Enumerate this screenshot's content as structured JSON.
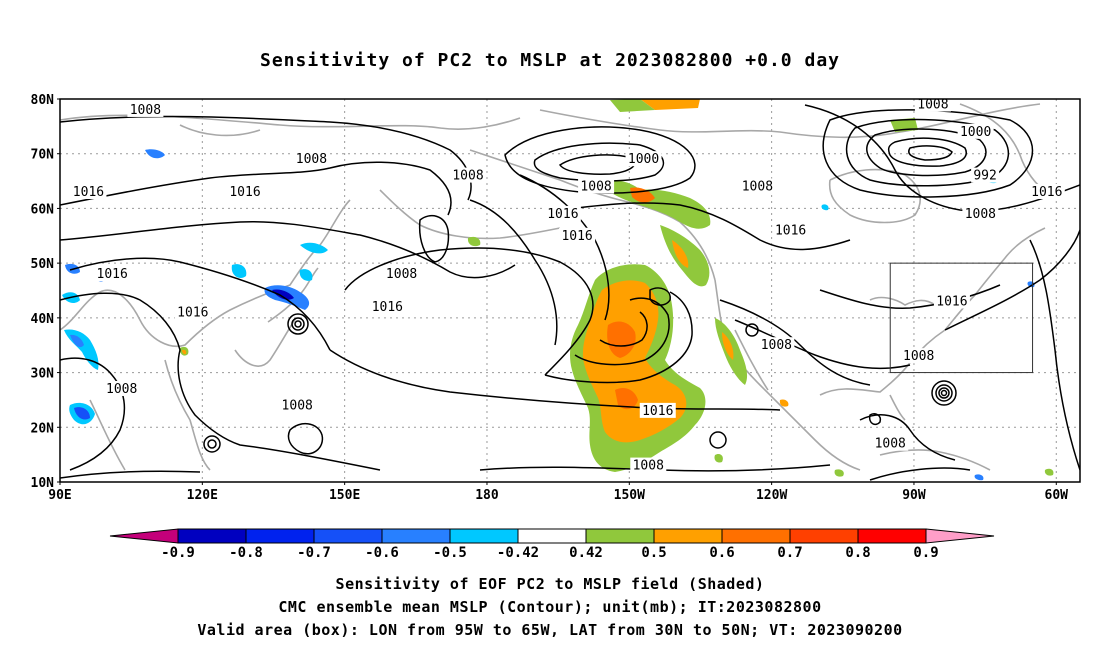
{
  "title": "Sensitivity of PC2 to MSLP at 2023082800 +0.0 day",
  "map": {
    "lat_labels": [
      "80N",
      "70N",
      "60N",
      "50N",
      "40N",
      "30N",
      "20N",
      "10N"
    ],
    "lon_labels": [
      "90E",
      "120E",
      "150E",
      "180",
      "150W",
      "120W",
      "90W",
      "60W"
    ],
    "contour_labels": [
      {
        "text": "1008",
        "lon": 108,
        "lat": 78
      },
      {
        "text": "1016",
        "lon": 96,
        "lat": 63
      },
      {
        "text": "1008",
        "lon": 143,
        "lat": 69
      },
      {
        "text": "1016",
        "lon": 129,
        "lat": 63
      },
      {
        "text": "1008",
        "lon": 176,
        "lat": 66
      },
      {
        "text": "1000",
        "lon": -147,
        "lat": 69
      },
      {
        "text": "1008",
        "lon": -157,
        "lat": 64
      },
      {
        "text": "1008",
        "lon": -123,
        "lat": 64
      },
      {
        "text": "1008",
        "lon": -86,
        "lat": 79
      },
      {
        "text": "1000",
        "lon": -77,
        "lat": 74
      },
      {
        "text": "992",
        "lon": -75,
        "lat": 66
      },
      {
        "text": "1016",
        "lon": -62,
        "lat": 63
      },
      {
        "text": "1008",
        "lon": -76,
        "lat": 59
      },
      {
        "text": "1016",
        "lon": -164,
        "lat": 59
      },
      {
        "text": "1016",
        "lon": -161,
        "lat": 55
      },
      {
        "text": "1016",
        "lon": -116,
        "lat": 56
      },
      {
        "text": "1016",
        "lon": 101,
        "lat": 48
      },
      {
        "text": "1008",
        "lon": 162,
        "lat": 48
      },
      {
        "text": "1016",
        "lon": 118,
        "lat": 41
      },
      {
        "text": "1016",
        "lon": 159,
        "lat": 42
      },
      {
        "text": "1016",
        "lon": -82,
        "lat": 43
      },
      {
        "text": "1008",
        "lon": -119,
        "lat": 35
      },
      {
        "text": "1008",
        "lon": -89,
        "lat": 33
      },
      {
        "text": "1008",
        "lon": 103,
        "lat": 27
      },
      {
        "text": "1008",
        "lon": 140,
        "lat": 24
      },
      {
        "text": "1016",
        "lon": -144,
        "lat": 23
      },
      {
        "text": "1008",
        "lon": -95,
        "lat": 17
      },
      {
        "text": "1008",
        "lon": -146,
        "lat": 13
      }
    ]
  },
  "colorbar": {
    "colors": [
      "#c4007a",
      "#0000c0",
      "#0022ee",
      "#1550f8",
      "#2880ff",
      "#00c8ff",
      "#ffffff",
      "#90c83c",
      "#ffa000",
      "#ff7000",
      "#ff4000",
      "#ff0000",
      "#ff9ec8"
    ],
    "labels": [
      "-0.9",
      "-0.8",
      "-0.7",
      "-0.6",
      "-0.5",
      "-0.42",
      "0.42",
      "0.5",
      "0.6",
      "0.7",
      "0.8",
      "0.9"
    ]
  },
  "footer": {
    "line1": "Sensitivity of EOF PC2 to MSLP field (Shaded)",
    "line2": "CMC ensemble mean MSLP (Contour); unit(mb); IT:2023082800",
    "line3": "Valid area (box): LON from 95W to 65W, LAT from 30N to 50N; VT: 2023090200"
  }
}
